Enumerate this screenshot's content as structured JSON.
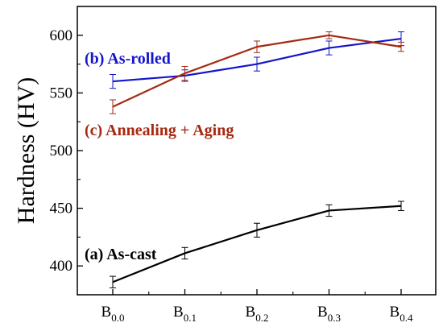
{
  "chart_data": {
    "type": "line",
    "ylabel": "Hardness (HV)",
    "categories": [
      {
        "base": "B",
        "sub": "0.0"
      },
      {
        "base": "B",
        "sub": "0.1"
      },
      {
        "base": "B",
        "sub": "0.2"
      },
      {
        "base": "B",
        "sub": "0.3"
      },
      {
        "base": "B",
        "sub": "0.4"
      }
    ],
    "ylim": [
      375,
      625
    ],
    "yticks": [
      "400",
      "450",
      "500",
      "550",
      "600"
    ],
    "grid": false,
    "series": [
      {
        "name": "(b) As-rolled",
        "color": "#1414cc",
        "values": [
          560,
          565,
          575,
          589,
          597
        ],
        "errors": [
          6,
          5,
          6,
          6,
          6
        ]
      },
      {
        "name": "(c) Annealing + Aging",
        "color": "#a52a12",
        "values": [
          538,
          567,
          590,
          600,
          590
        ],
        "errors": [
          6,
          6,
          5,
          3,
          4
        ]
      },
      {
        "name": "(a) As-cast",
        "color": "#000000",
        "values": [
          386,
          411,
          431,
          448,
          452
        ],
        "errors": [
          5,
          5,
          6,
          5,
          4
        ]
      }
    ]
  }
}
